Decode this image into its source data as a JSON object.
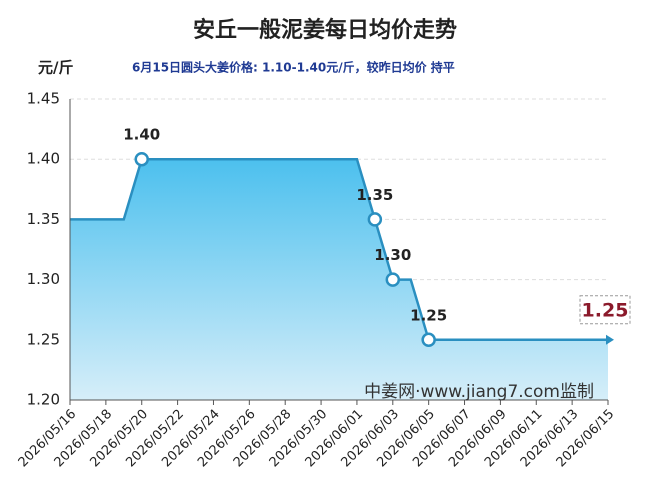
{
  "chart_data": {
    "type": "line",
    "title": "安丘一般泥姜每日均价走势",
    "subtitle": "6月15日圆头大姜价格: 1.10-1.40元/斤，较昨日均价 持平",
    "y_label": "元/斤",
    "watermark": "中姜网·www.jiang7.com监制",
    "color": "#2a8fc0",
    "x": [
      "2026/05/16",
      "2026/05/17",
      "2026/05/18",
      "2026/05/19",
      "2026/05/20",
      "2026/05/21",
      "2026/05/22",
      "2026/05/23",
      "2026/05/24",
      "2026/05/25",
      "2026/05/26",
      "2026/05/27",
      "2026/05/28",
      "2026/05/29",
      "2026/05/30",
      "2026/05/31",
      "2026/06/01",
      "2026/06/02",
      "2026/06/03",
      "2026/06/04",
      "2026/06/05",
      "2026/06/06",
      "2026/06/07",
      "2026/06/08",
      "2026/06/09",
      "2026/06/10",
      "2026/06/11",
      "2026/06/12",
      "2026/06/13",
      "2026/06/14",
      "2026/06/15"
    ],
    "values": [
      1.35,
      1.35,
      1.35,
      1.35,
      1.4,
      1.4,
      1.4,
      1.4,
      1.4,
      1.4,
      1.4,
      1.4,
      1.4,
      1.4,
      1.4,
      1.4,
      1.4,
      1.35,
      1.3,
      1.3,
      1.25,
      1.25,
      1.25,
      1.25,
      1.25,
      1.25,
      1.25,
      1.25,
      1.25,
      1.25,
      1.25
    ],
    "value_labels": [
      null,
      null,
      null,
      null,
      "1.40",
      null,
      null,
      null,
      null,
      null,
      null,
      null,
      null,
      null,
      null,
      null,
      null,
      "1.35",
      "1.30",
      null,
      "1.25",
      null,
      null,
      null,
      null,
      null,
      null,
      null,
      null,
      null,
      "1.25"
    ],
    "xlim": [
      "2026/05/16",
      "2026/06/15"
    ],
    "xticks": [
      "2026/05/16",
      "2026/05/18",
      "2026/05/20",
      "2026/05/22",
      "2026/05/24",
      "2026/05/26",
      "2026/05/28",
      "2026/05/30",
      "2026/06/01",
      "2026/06/03",
      "2026/06/05",
      "2026/06/07",
      "2026/06/09",
      "2026/06/11",
      "2026/06/13",
      "2026/06/15"
    ],
    "ylim": [
      1.2,
      1.45
    ],
    "yticks": [
      {
        "value": 1.2,
        "label": "1.20"
      },
      {
        "value": 1.25,
        "label": "1.25"
      },
      {
        "value": 1.3,
        "label": "1.30"
      },
      {
        "value": 1.35,
        "label": "1.35"
      },
      {
        "value": 1.4,
        "label": "1.40"
      },
      {
        "value": 1.45,
        "label": "1.45"
      }
    ],
    "grid": true
  }
}
